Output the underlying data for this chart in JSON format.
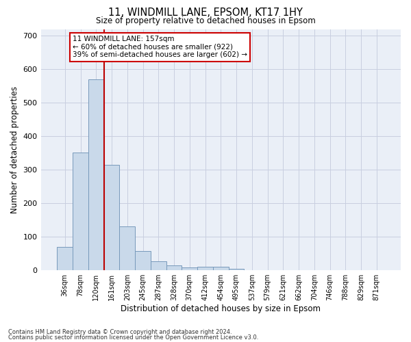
{
  "title_line1": "11, WINDMILL LANE, EPSOM, KT17 1HY",
  "title_line2": "Size of property relative to detached houses in Epsom",
  "xlabel": "Distribution of detached houses by size in Epsom",
  "ylabel": "Number of detached properties",
  "bar_values": [
    68,
    350,
    570,
    315,
    130,
    57,
    25,
    14,
    8,
    10,
    10,
    4,
    0,
    0,
    0,
    0,
    0,
    0,
    0,
    0,
    0
  ],
  "bar_labels": [
    "36sqm",
    "78sqm",
    "120sqm",
    "161sqm",
    "203sqm",
    "245sqm",
    "287sqm",
    "328sqm",
    "370sqm",
    "412sqm",
    "454sqm",
    "495sqm",
    "537sqm",
    "579sqm",
    "621sqm",
    "662sqm",
    "704sqm",
    "746sqm",
    "788sqm",
    "829sqm",
    "871sqm"
  ],
  "bar_color": "#c9d9ea",
  "bar_edge_color": "#7799bb",
  "grid_color": "#c8cfe0",
  "background_color": "#eaeff7",
  "annotation_line1": "11 WINDMILL LANE: 157sqm",
  "annotation_line2": "← 60% of detached houses are smaller (922)",
  "annotation_line3": "39% of semi-detached houses are larger (602) →",
  "vline_color": "#bb0000",
  "vline_x_index": 2.5,
  "annotation_box_facecolor": "#ffffff",
  "annotation_box_edgecolor": "#cc0000",
  "ylim": [
    0,
    720
  ],
  "yticks": [
    0,
    100,
    200,
    300,
    400,
    500,
    600,
    700
  ],
  "footer_line1": "Contains HM Land Registry data © Crown copyright and database right 2024.",
  "footer_line2": "Contains public sector information licensed under the Open Government Licence v3.0."
}
